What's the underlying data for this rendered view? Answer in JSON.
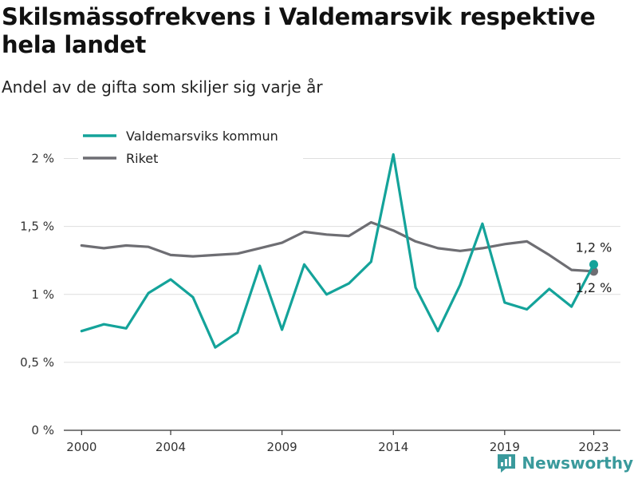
{
  "title": "Skilsmässofrekvens i Valdemarsvik respektive hela landet",
  "subtitle": "Andel av de gifta som skiljer sig varje år",
  "brand": "Newsworthy",
  "chart_data": {
    "type": "line",
    "x": [
      2000,
      2001,
      2002,
      2003,
      2004,
      2005,
      2006,
      2007,
      2008,
      2009,
      2010,
      2011,
      2012,
      2013,
      2014,
      2015,
      2016,
      2017,
      2018,
      2019,
      2020,
      2021,
      2022,
      2023
    ],
    "xticks": [
      2000,
      2004,
      2009,
      2014,
      2019,
      2023
    ],
    "xtick_labels": [
      "2000",
      "2004",
      "2009",
      "2014",
      "2019",
      "2023"
    ],
    "xlim": [
      1999.2,
      2024.2
    ],
    "yticks": [
      0,
      0.5,
      1,
      1.5,
      2
    ],
    "ytick_labels": [
      "0 %",
      "0,5 %",
      "1 %",
      "1,5 %",
      "2 %"
    ],
    "ylim": [
      0,
      2.05
    ],
    "grid": true,
    "legend": "top-left",
    "series": [
      {
        "name": "Valdemarsviks kommun",
        "color": "#14a39a",
        "values": [
          0.73,
          0.78,
          0.75,
          1.01,
          1.11,
          0.98,
          0.61,
          0.72,
          1.21,
          0.74,
          1.22,
          1.0,
          1.08,
          1.24,
          2.03,
          1.05,
          0.73,
          1.07,
          1.52,
          0.94,
          0.89,
          1.04,
          0.91,
          1.22
        ],
        "end_label": "1,2 %"
      },
      {
        "name": "Riket",
        "color": "#6e6e73",
        "values": [
          1.36,
          1.34,
          1.36,
          1.35,
          1.29,
          1.28,
          1.29,
          1.3,
          1.34,
          1.38,
          1.46,
          1.44,
          1.43,
          1.53,
          1.47,
          1.39,
          1.34,
          1.32,
          1.34,
          1.37,
          1.39,
          1.29,
          1.18,
          1.17
        ],
        "end_label": "1,2 %"
      }
    ]
  }
}
